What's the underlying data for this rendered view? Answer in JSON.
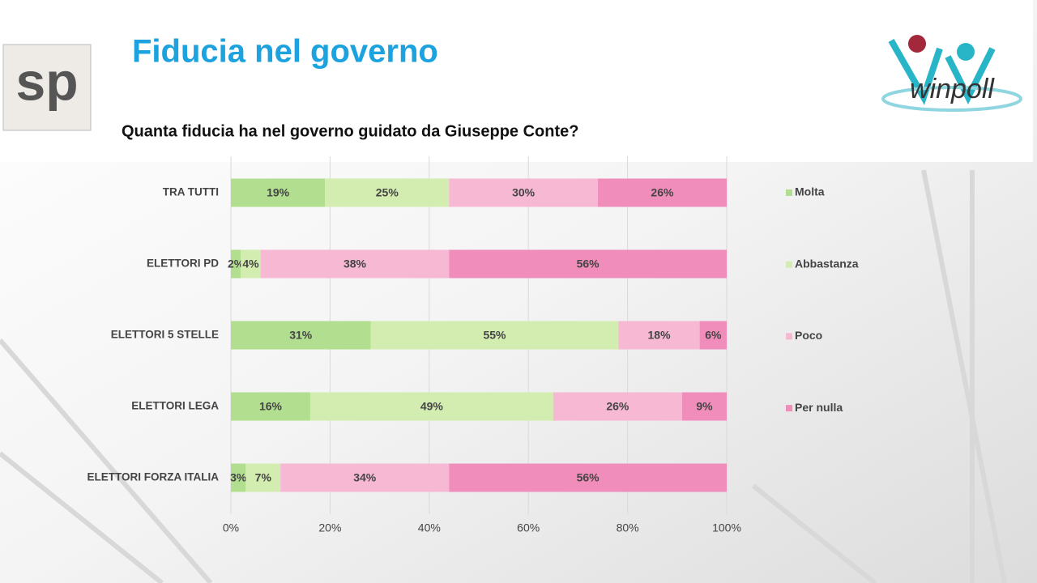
{
  "logos": {
    "left": "sp",
    "right": "winpoll"
  },
  "chart_data": {
    "type": "bar",
    "orientation": "horizontal",
    "stacking": "percent",
    "title": "Fiducia nel governo",
    "subtitle": "Quanta fiducia ha nel governo guidato da Giuseppe Conte?",
    "categories": [
      "TRA TUTTI",
      "ELETTORI PD",
      "ELETTORI 5 STELLE",
      "ELETTORI LEGA",
      "ELETTORI FORZA ITALIA"
    ],
    "series": [
      {
        "name": "Molta",
        "color": "#b2de8f",
        "values": [
          19,
          2,
          31,
          16,
          3
        ],
        "value_labels": [
          "19%",
          "2%",
          "31%",
          "16%",
          "3%"
        ]
      },
      {
        "name": "Abbastanza",
        "color": "#d3edb0",
        "values": [
          25,
          4,
          55,
          49,
          7
        ],
        "value_labels": [
          "25%",
          "4%",
          "55%",
          "49%",
          "7%"
        ]
      },
      {
        "name": "Poco",
        "color": "#f6b8d3",
        "values": [
          30,
          38,
          18,
          26,
          34
        ],
        "value_labels": [
          "30%",
          "38%",
          "18%",
          "26%",
          "34%"
        ]
      },
      {
        "name": "Per nulla",
        "color": "#f08dbb",
        "values": [
          26,
          56,
          6,
          9,
          56
        ],
        "value_labels": [
          "26%",
          "56%",
          "6%",
          "9%",
          "56%"
        ]
      }
    ],
    "xlim": [
      0,
      100
    ],
    "xticks": [
      {
        "value": 0,
        "label": "0%"
      },
      {
        "value": 20,
        "label": "20%"
      },
      {
        "value": 40,
        "label": "40%"
      },
      {
        "value": 60,
        "label": "60%"
      },
      {
        "value": 80,
        "label": "80%"
      },
      {
        "value": 100,
        "label": "100%"
      }
    ],
    "grid": true,
    "legend": "right"
  }
}
